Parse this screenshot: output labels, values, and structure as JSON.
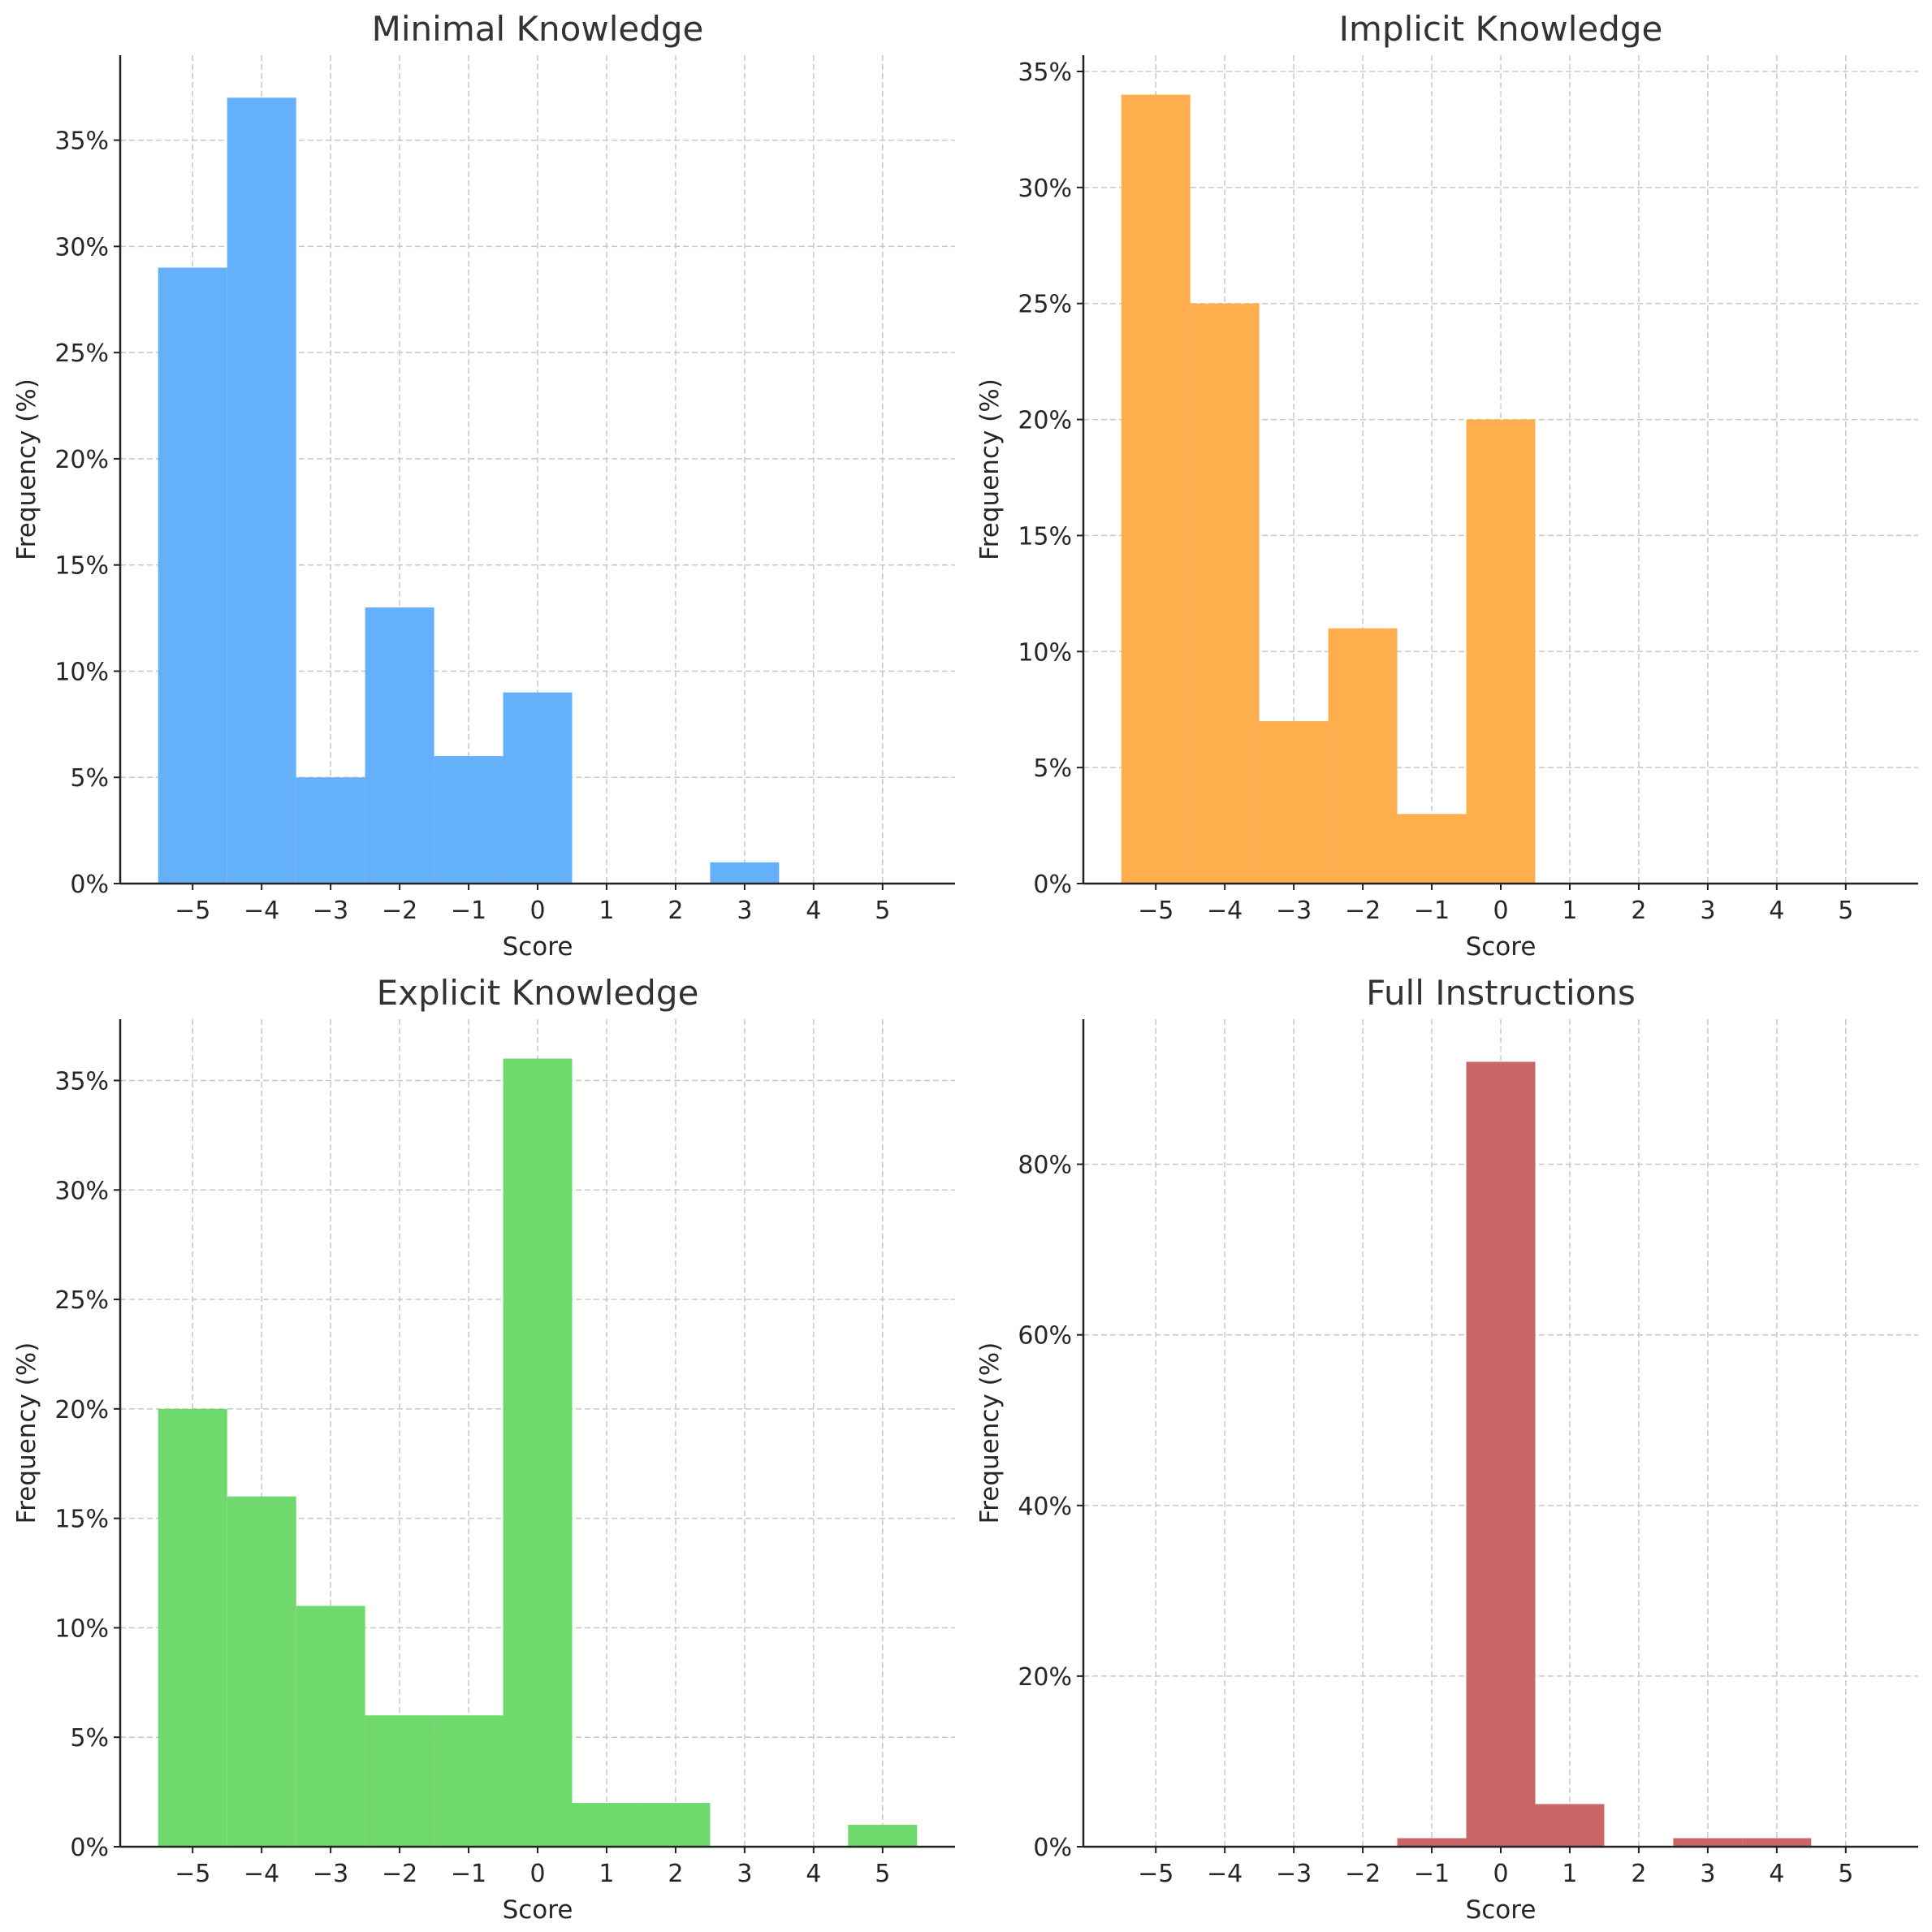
{
  "chart_data": [
    {
      "type": "bar",
      "title": "Minimal Knowledge",
      "xlabel": "Score",
      "ylabel": "Frequency (%)",
      "color": "#64b0fb",
      "x": [
        -5,
        -4,
        -3,
        -2,
        -1,
        0,
        1,
        2,
        3,
        4,
        5
      ],
      "values": [
        29,
        37,
        5,
        13,
        6,
        9,
        0,
        0,
        1,
        0,
        0
      ],
      "xlim": [
        -6.05,
        6.05
      ],
      "ylim": [
        0,
        39
      ],
      "xticks": [
        -5,
        -4,
        -3,
        -2,
        -1,
        0,
        1,
        2,
        3,
        4,
        5
      ],
      "xtick_labels": [
        "−5",
        "−4",
        "−3",
        "−2",
        "−1",
        "0",
        "1",
        "2",
        "3",
        "4",
        "5"
      ],
      "yticks": [
        0,
        5,
        10,
        15,
        20,
        25,
        30,
        35
      ],
      "ytick_labels": [
        "0%",
        "5%",
        "10%",
        "15%",
        "20%",
        "25%",
        "30%",
        "35%"
      ],
      "grid": true
    },
    {
      "type": "bar",
      "title": "Implicit Knowledge",
      "xlabel": "Score",
      "ylabel": "Frequency (%)",
      "color": "#feae4c",
      "x": [
        -5,
        -4,
        -3,
        -2,
        -1,
        0,
        1,
        2,
        3,
        4,
        5
      ],
      "values": [
        34,
        25,
        7,
        11,
        3,
        20,
        0,
        0,
        0,
        0,
        0
      ],
      "xlim": [
        -6.05,
        6.05
      ],
      "ylim": [
        0,
        35.7
      ],
      "xticks": [
        -5,
        -4,
        -3,
        -2,
        -1,
        0,
        1,
        2,
        3,
        4,
        5
      ],
      "xtick_labels": [
        "−5",
        "−4",
        "−3",
        "−2",
        "−1",
        "0",
        "1",
        "2",
        "3",
        "4",
        "5"
      ],
      "yticks": [
        0,
        5,
        10,
        15,
        20,
        25,
        30,
        35
      ],
      "ytick_labels": [
        "0%",
        "5%",
        "10%",
        "15%",
        "20%",
        "25%",
        "30%",
        "35%"
      ],
      "grid": true
    },
    {
      "type": "bar",
      "title": "Explicit Knowledge",
      "xlabel": "Score",
      "ylabel": "Frequency (%)",
      "color": "#70d96e",
      "x": [
        -5,
        -4,
        -3,
        -2,
        -1,
        0,
        1,
        2,
        3,
        4,
        5
      ],
      "values": [
        20,
        16,
        11,
        6,
        6,
        36,
        2,
        2,
        0,
        0,
        1
      ],
      "xlim": [
        -6.05,
        6.05
      ],
      "ylim": [
        0,
        37.8
      ],
      "xticks": [
        -5,
        -4,
        -3,
        -2,
        -1,
        0,
        1,
        2,
        3,
        4,
        5
      ],
      "xtick_labels": [
        "−5",
        "−4",
        "−3",
        "−2",
        "−1",
        "0",
        "1",
        "2",
        "3",
        "4",
        "5"
      ],
      "yticks": [
        0,
        5,
        10,
        15,
        20,
        25,
        30,
        35
      ],
      "ytick_labels": [
        "0%",
        "5%",
        "10%",
        "15%",
        "20%",
        "25%",
        "30%",
        "35%"
      ],
      "grid": true
    },
    {
      "type": "bar",
      "title": "Full Instructions",
      "xlabel": "Score",
      "ylabel": "Frequency (%)",
      "color": "#c96565",
      "x": [
        -5,
        -4,
        -3,
        -2,
        -1,
        0,
        1,
        2,
        3,
        4,
        5
      ],
      "values": [
        0,
        0,
        0,
        0,
        1,
        92,
        5,
        0,
        1,
        1,
        0
      ],
      "xlim": [
        -6.05,
        6.05
      ],
      "ylim": [
        0,
        97
      ],
      "xticks": [
        -5,
        -4,
        -3,
        -2,
        -1,
        0,
        1,
        2,
        3,
        4,
        5
      ],
      "xtick_labels": [
        "−5",
        "−4",
        "−3",
        "−2",
        "−1",
        "0",
        "1",
        "2",
        "3",
        "4",
        "5"
      ],
      "yticks": [
        0,
        20,
        40,
        60,
        80
      ],
      "ytick_labels": [
        "0%",
        "20%",
        "40%",
        "60%",
        "80%"
      ],
      "grid": true
    }
  ]
}
